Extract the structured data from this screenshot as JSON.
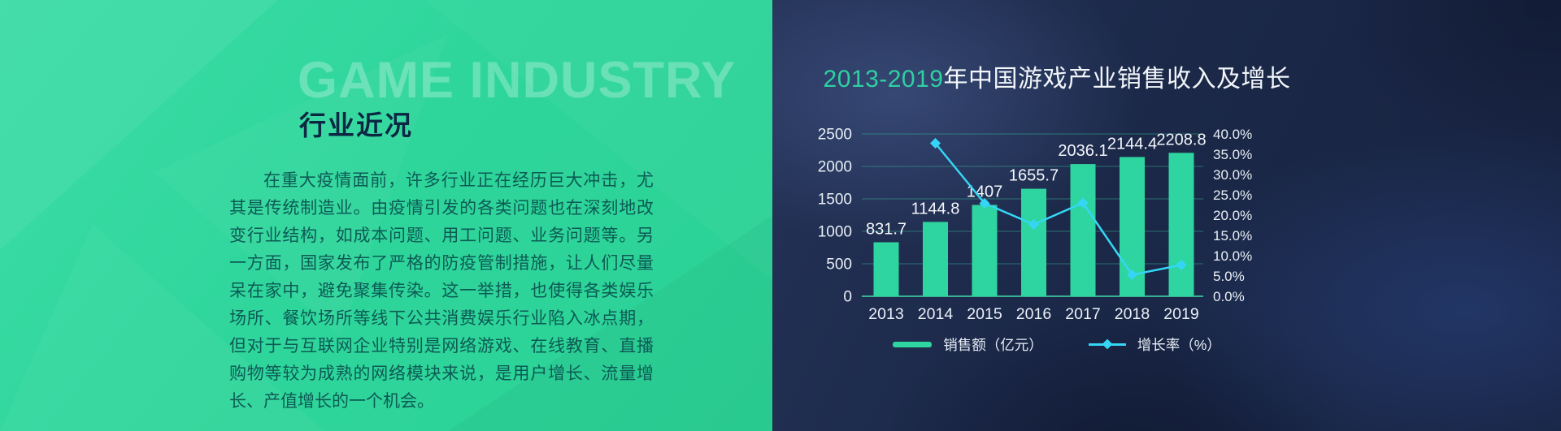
{
  "slide": {
    "left": {
      "watermark": "GAME INDUSTRY",
      "heading": "行业近况",
      "paragraph": "在重大疫情面前，许多行业正在经历巨大冲击，尤其是传统制造业。由疫情引发的各类问题也在深刻地改变行业结构，如成本问题、用工问题、业务问题等。另一方面，国家发布了严格的防疫管制措施，让人们尽量呆在家中，避免聚集传染。这一举措，也使得各类娱乐场所、餐饮场所等线下公共消费娱乐行业陷入冰点期，但对于与互联网企业特别是网络游戏、在线教育、直播购物等较为成熟的网络模块来说，是用户增长、流量增长、产值增长的一个机会。"
    },
    "right": {
      "title_highlight": "2013-2019",
      "title_rest": "年中国游戏产业销售收入及增长",
      "legend": [
        {
          "label": "销售额（亿元）"
        },
        {
          "label": "增长率（%）"
        }
      ]
    },
    "colors": {
      "accent_green": "#2fd5a0",
      "accent_cyan": "#35d6f5",
      "left_bg": "#2fd69c",
      "right_bg": "#1b2848",
      "heading_text": "#0b2743",
      "paragraph_text": "#0d5b54",
      "title_highlight": "#2ed0a2",
      "gridline": "#3cc8a0"
    }
  },
  "chart_data": {
    "type": "combo",
    "title": "2013-2019年中国游戏产业销售收入及增长",
    "categories": [
      "2013",
      "2014",
      "2015",
      "2016",
      "2017",
      "2018",
      "2019"
    ],
    "series": [
      {
        "name": "销售额（亿元）",
        "type": "bar",
        "color": "#2fd5a0",
        "axis": "left",
        "values": [
          831.7,
          1144.8,
          1407,
          1655.7,
          2036.1,
          2144.4,
          2208.8
        ],
        "value_labels": [
          "831.7",
          "1144.8",
          "1407",
          "1655.7",
          "2036.1",
          "2144.4",
          "2208.8"
        ]
      },
      {
        "name": "增长率（%）",
        "type": "line",
        "color": "#35d6f5",
        "axis": "right",
        "values": [
          null,
          37.7,
          22.9,
          17.7,
          23.0,
          5.3,
          7.7
        ]
      }
    ],
    "y_left": {
      "min": 0,
      "max": 2500,
      "ticks": [
        "0",
        "500",
        "1000",
        "1500",
        "2000",
        "2500"
      ]
    },
    "y_right": {
      "min": 0,
      "max": 40,
      "ticks": [
        "0.0%",
        "5.0%",
        "10.0%",
        "15.0%",
        "20.0%",
        "25.0%",
        "30.0%",
        "35.0%",
        "40.0%"
      ]
    },
    "grid": true,
    "legend_position": "bottom"
  }
}
